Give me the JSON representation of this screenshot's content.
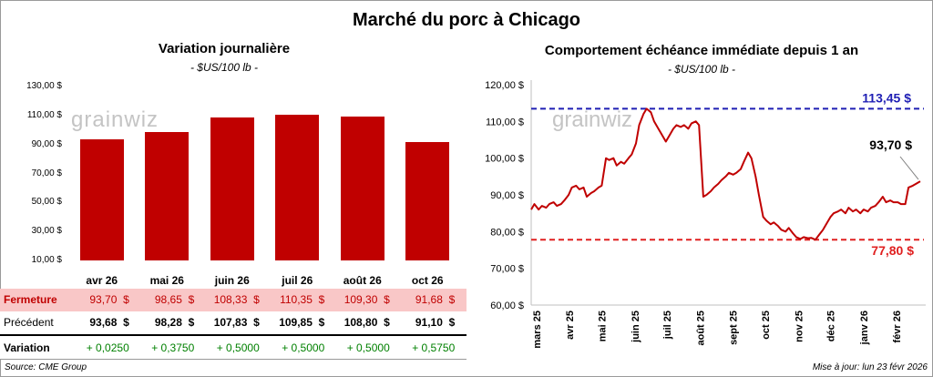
{
  "title": "Marché du porc à Chicago",
  "left_panel": {
    "title": "Variation journalière",
    "unit": "- $US/100 lb -",
    "watermark": "grainwiz"
  },
  "right_panel": {
    "title": "Comportement  échéance immédiate depuis 1 an",
    "unit": "- $US/100 lb -",
    "watermark": "grainwiz",
    "high_label": "113,45 $",
    "low_label": "77,80 $",
    "last_label": "93,70 $"
  },
  "table": {
    "rows": [
      {
        "label": "Fermeture",
        "values": [
          "93,70  $",
          "98,65  $",
          "108,33  $",
          "110,35  $",
          "109,30  $",
          "91,68  $"
        ]
      },
      {
        "label": "Précédent",
        "values": [
          "93,68  $",
          "98,28  $",
          "107,83  $",
          "109,85  $",
          "108,80  $",
          "91,10  $"
        ]
      },
      {
        "label": "Variation",
        "values": [
          "+ 0,0250",
          "+ 0,3750",
          "+ 0,5000",
          "+ 0,5000",
          "+ 0,5000",
          "+ 0,5750"
        ]
      }
    ]
  },
  "footer": {
    "source": "Source: CME Group",
    "updated": "Mise à jour: lun 23 févr 2026"
  },
  "colors": {
    "bar": "#c00000",
    "fermeture_row_bg": "#f9c7c7",
    "fermeture_text": "#c00000",
    "variation_text": "#008000",
    "high_line": "#1f1fb4",
    "low_line": "#e02020",
    "price_line": "#c00000"
  },
  "chart_data": [
    {
      "type": "bar",
      "title": "Variation journalière",
      "subtitle": "- $US/100 lb -",
      "categories": [
        "avr 26",
        "mai 26",
        "juin 26",
        "juil 26",
        "août 26",
        "oct 26"
      ],
      "values": [
        93.7,
        98.65,
        108.33,
        110.35,
        109.3,
        91.68
      ],
      "ylim": [
        10,
        130
      ],
      "yticks": [
        10,
        30,
        50,
        70,
        90,
        110,
        130
      ],
      "ytick_labels": [
        "10,00 $",
        "30,00 $",
        "50,00 $",
        "70,00 $",
        "90,00 $",
        "110,00 $",
        "130,00 $"
      ],
      "grid": false
    },
    {
      "type": "line",
      "title": "Comportement  échéance immédiate depuis 1 an",
      "subtitle": "- $US/100 lb -",
      "ylim": [
        60,
        120
      ],
      "yticks": [
        60,
        70,
        80,
        90,
        100,
        110,
        120
      ],
      "ytick_labels": [
        "60,00 $",
        "70,00 $",
        "80,00 $",
        "90,00 $",
        "100,00 $",
        "110,00 $",
        "120,00 $"
      ],
      "xlabels": [
        "mars 25",
        "avr 25",
        "mai 25",
        "juin 25",
        "juil 25",
        "août 25",
        "sept 25",
        "oct 25",
        "nov 25",
        "déc 25",
        "janv 26",
        "févr 26"
      ],
      "x_range": [
        "2025-02-24",
        "2026-02-23"
      ],
      "reference_lines": [
        {
          "value": 113.45,
          "label": "113,45 $",
          "style": "dashed",
          "color": "#1f1fb4"
        },
        {
          "value": 77.8,
          "label": "77,80 $",
          "style": "dashed",
          "color": "#e02020"
        }
      ],
      "series": [
        {
          "x": [
            "2025-02-24",
            "2025-02-27",
            "2025-03-03",
            "2025-03-06",
            "2025-03-10",
            "2025-03-13",
            "2025-03-17",
            "2025-03-20",
            "2025-03-24",
            "2025-03-27",
            "2025-03-31",
            "2025-04-03",
            "2025-04-07",
            "2025-04-10",
            "2025-04-14",
            "2025-04-17",
            "2025-04-21",
            "2025-04-24",
            "2025-04-28",
            "2025-05-01",
            "2025-05-05",
            "2025-05-08",
            "2025-05-12",
            "2025-05-15",
            "2025-05-19",
            "2025-05-22",
            "2025-05-26",
            "2025-05-29",
            "2025-06-02",
            "2025-06-05",
            "2025-06-09",
            "2025-06-12",
            "2025-06-16",
            "2025-06-19",
            "2025-06-23",
            "2025-06-26",
            "2025-06-30",
            "2025-07-03",
            "2025-07-07",
            "2025-07-10",
            "2025-07-14",
            "2025-07-17",
            "2025-07-21",
            "2025-07-24",
            "2025-07-28",
            "2025-07-31",
            "2025-08-04",
            "2025-08-07",
            "2025-08-11",
            "2025-08-14",
            "2025-08-18",
            "2025-08-21",
            "2025-08-25",
            "2025-08-28",
            "2025-09-01",
            "2025-09-04",
            "2025-09-08",
            "2025-09-11",
            "2025-09-15",
            "2025-09-18",
            "2025-09-22",
            "2025-09-25",
            "2025-09-29",
            "2025-10-02",
            "2025-10-06",
            "2025-10-09",
            "2025-10-13",
            "2025-10-16",
            "2025-10-20",
            "2025-10-23",
            "2025-10-27",
            "2025-10-30",
            "2025-11-03",
            "2025-11-06",
            "2025-11-10",
            "2025-11-13",
            "2025-11-17",
            "2025-11-20",
            "2025-11-24",
            "2025-11-27",
            "2025-12-01",
            "2025-12-04",
            "2025-12-08",
            "2025-12-11",
            "2025-12-15",
            "2025-12-18",
            "2025-12-22",
            "2025-12-25",
            "2025-12-29",
            "2026-01-01",
            "2026-01-05",
            "2026-01-08",
            "2026-01-12",
            "2026-01-15",
            "2026-01-19",
            "2026-01-22",
            "2026-01-26",
            "2026-01-29",
            "2026-02-02",
            "2026-02-05",
            "2026-02-09",
            "2026-02-12",
            "2026-02-16",
            "2026-02-19",
            "2026-02-23"
          ],
          "values": [
            86.0,
            87.5,
            86.0,
            87.0,
            86.5,
            87.5,
            88.0,
            87.0,
            87.5,
            88.5,
            90.0,
            92.0,
            92.5,
            91.5,
            92.0,
            89.5,
            90.5,
            91.0,
            92.0,
            92.5,
            100.0,
            99.5,
            100.0,
            98.0,
            99.0,
            98.5,
            100.0,
            101.0,
            104.0,
            109.0,
            112.0,
            113.45,
            112.5,
            110.0,
            108.0,
            106.5,
            104.5,
            106.0,
            108.0,
            109.0,
            108.5,
            109.0,
            108.0,
            109.5,
            110.0,
            109.0,
            89.5,
            90.0,
            91.0,
            92.0,
            93.0,
            94.0,
            95.0,
            96.0,
            95.5,
            96.0,
            97.0,
            99.0,
            101.5,
            100.0,
            95.0,
            90.0,
            84.0,
            83.0,
            82.0,
            82.5,
            81.5,
            80.5,
            80.0,
            81.0,
            79.5,
            78.5,
            78.0,
            78.5,
            78.2,
            78.3,
            77.8,
            79.0,
            80.5,
            82.0,
            84.0,
            85.0,
            85.5,
            86.0,
            85.0,
            86.5,
            85.5,
            86.0,
            85.0,
            86.0,
            85.5,
            86.5,
            87.0,
            88.0,
            89.5,
            88.0,
            88.5,
            88.0,
            88.0,
            87.5,
            87.5,
            92.0,
            92.5,
            93.0,
            93.7
          ]
        }
      ],
      "annotations": [
        "113,45 $",
        "77,80 $",
        "93,70 $"
      ],
      "grid": false
    }
  ]
}
